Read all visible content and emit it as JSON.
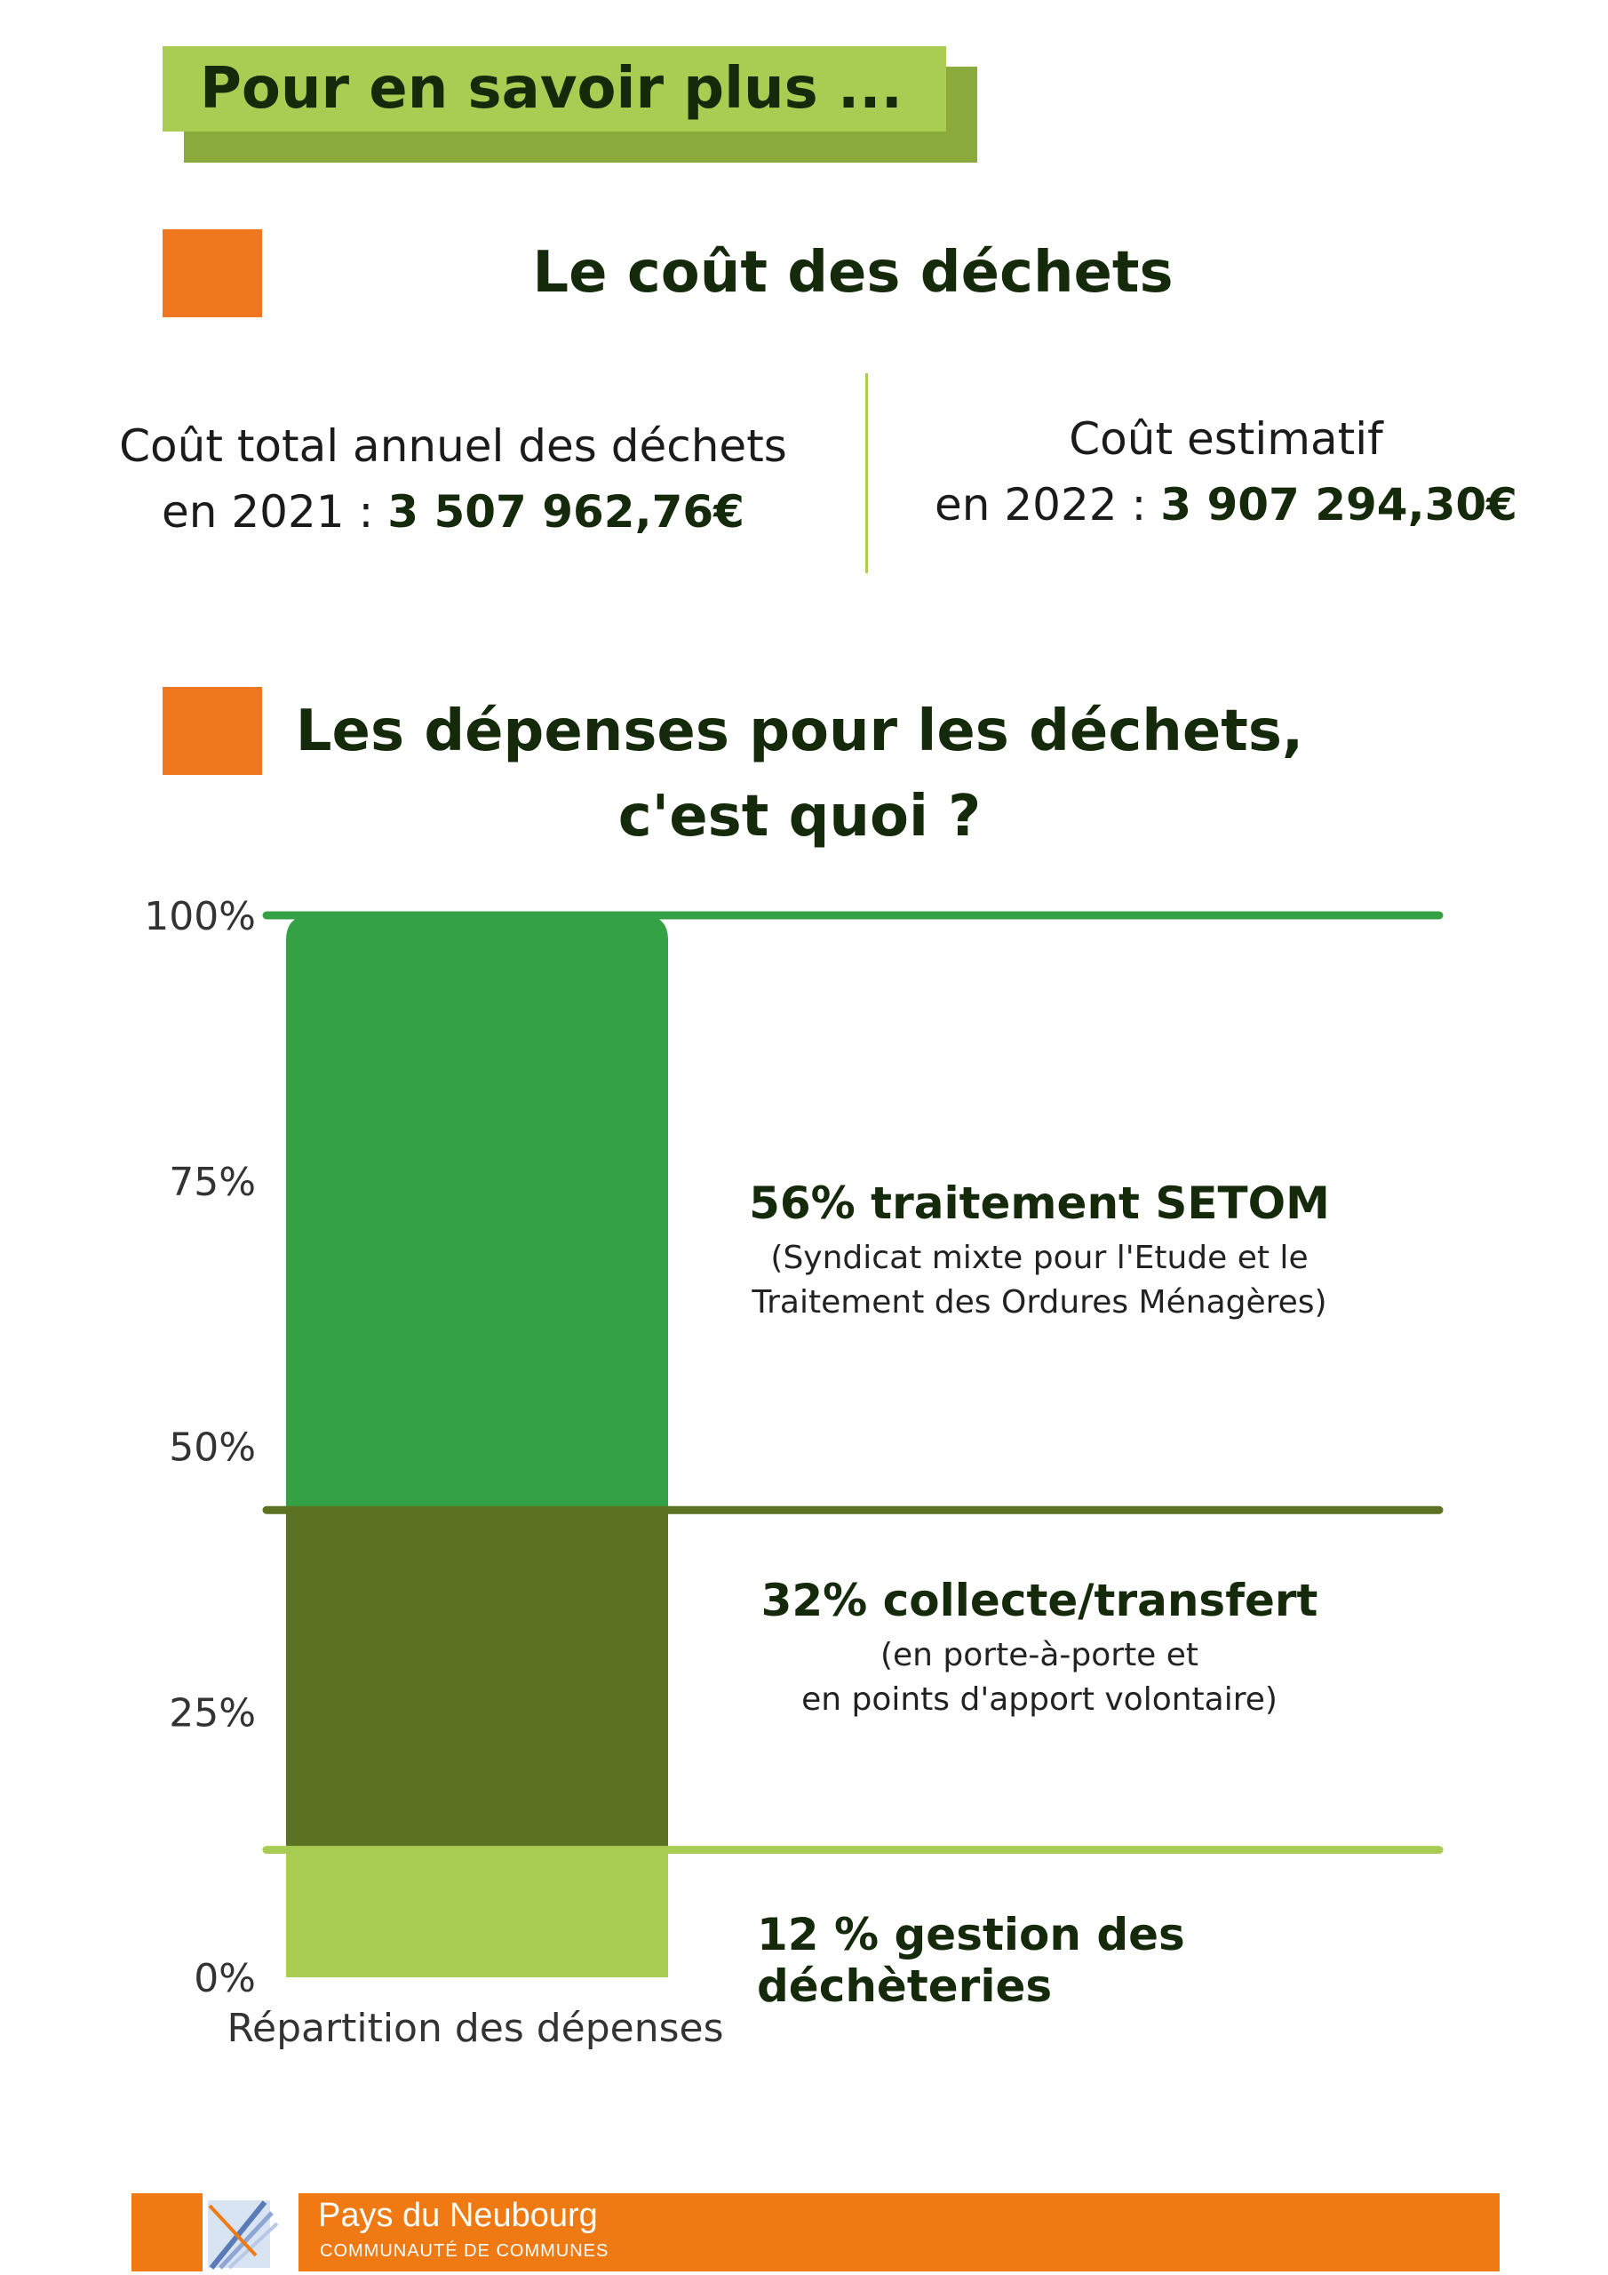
{
  "header": {
    "title": "Pour en savoir plus ..."
  },
  "cost_section": {
    "title": "Le coût des déchets",
    "left_line1": "Coût total annuel des déchets",
    "left_line2_prefix": "en 2021 : ",
    "left_value": "3 507 962,76€",
    "right_line1": "Coût estimatif",
    "right_line2_prefix": "en 2022 : ",
    "right_value": "3 907 294,30€"
  },
  "expenses_section": {
    "title_line1": "Les dépenses pour les déchets,",
    "title_line2": "c'est quoi ?"
  },
  "chart_data": {
    "type": "bar",
    "stacked": true,
    "categories": [
      "Répartition des dépenses"
    ],
    "ylim": [
      0,
      100
    ],
    "yticks": [
      "0%",
      "25%",
      "50%",
      "75%",
      "100%"
    ],
    "series": [
      {
        "name": "12 % gestion des déchèteries",
        "values": [
          12
        ],
        "color": "#a8cd52"
      },
      {
        "name": "32% collecte/transfert",
        "values": [
          32
        ],
        "color": "#5b7222"
      },
      {
        "name": "56% traitement SETOM",
        "values": [
          56
        ],
        "color": "#34a244"
      }
    ],
    "annotations": {
      "setom_title": "56% traitement SETOM",
      "setom_sub1": "(Syndicat mixte pour l'Etude et le",
      "setom_sub2": "Traitement des Ordures Ménagères)",
      "collecte_title": "32% collecte/transfert",
      "collecte_sub1": "(en porte-à-porte et",
      "collecte_sub2": "en points d'apport volontaire)",
      "dech_title": "12 % gestion des déchèteries"
    }
  },
  "footer": {
    "org_name": "Pays du Neubourg",
    "org_sub": "COMMUNAUTÉ DE COMMUNES",
    "bar_color": "#ef7a14"
  }
}
